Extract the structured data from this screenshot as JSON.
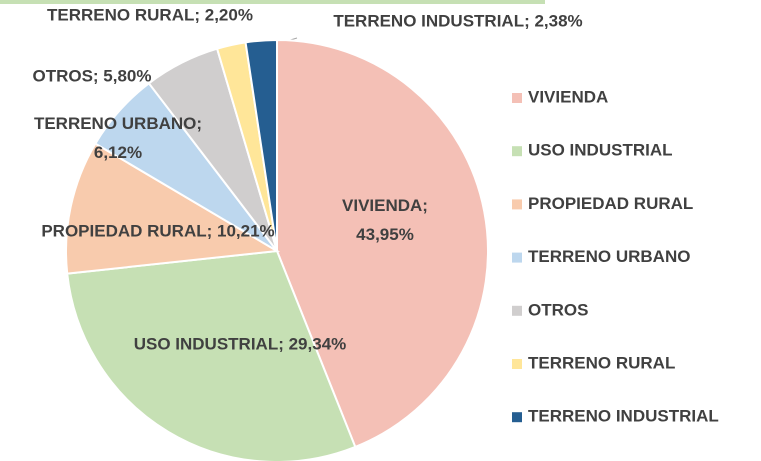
{
  "chart_data": {
    "type": "pie",
    "categories": [
      "VIVIENDA",
      "USO INDUSTRIAL",
      "PROPIEDAD RURAL",
      "TERRENO URBANO",
      "OTROS",
      "TERRENO RURAL",
      "TERRENO INDUSTRIAL"
    ],
    "values": [
      43.95,
      29.34,
      10.21,
      6.12,
      5.8,
      2.2,
      2.38
    ],
    "value_labels": [
      "VIVIENDA; 43,95%",
      "USO INDUSTRIAL; 29,34%",
      "PROPIEDAD RURAL; 10,21%",
      "TERRENO URBANO; 6,12%",
      "OTROS; 5,80%",
      "TERRENO RURAL; 2,20%",
      "TERRENO INDUSTRIAL; 2,38%"
    ],
    "colors": [
      "#f4c0b6",
      "#c6e0b4",
      "#f8cbad",
      "#bdd7ee",
      "#d0cece",
      "#ffe699",
      "#255e91"
    ],
    "legend": "right"
  }
}
